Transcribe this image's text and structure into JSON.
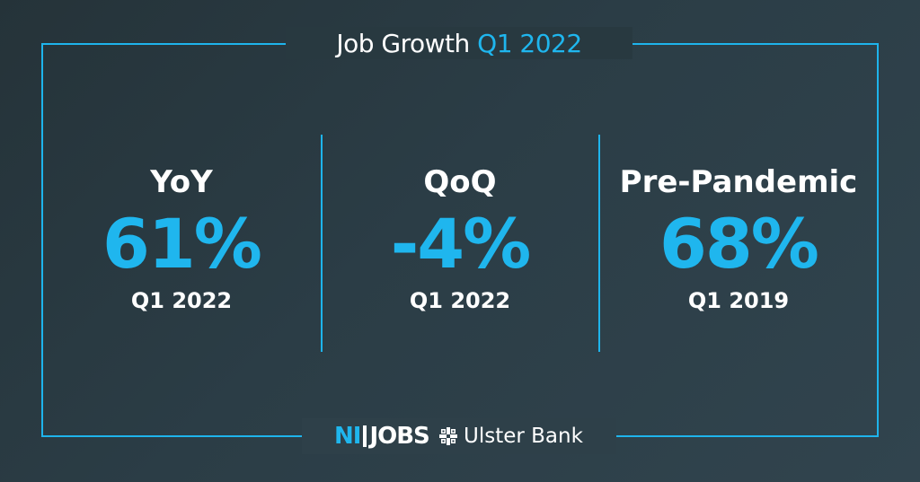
{
  "header": {
    "title_prefix": "Job Growth",
    "title_accent": "Q1 2022"
  },
  "stats": [
    {
      "label": "YoY",
      "value": "61%",
      "period": "Q1 2022"
    },
    {
      "label": "QoQ",
      "value": "-4%",
      "period": "Q1 2022"
    },
    {
      "label": "Pre-Pandemic",
      "value": "68%",
      "period": "Q1 2019"
    }
  ],
  "footer": {
    "nijobs_ni": "NI",
    "nijobs_jobs": "JOBS",
    "bank_name": "Ulster Bank",
    "bank_icon": "ulster-bank-logo-icon"
  },
  "colors": {
    "accent": "#1fb6ee",
    "text": "#ffffff",
    "background": "#2b3d46"
  }
}
